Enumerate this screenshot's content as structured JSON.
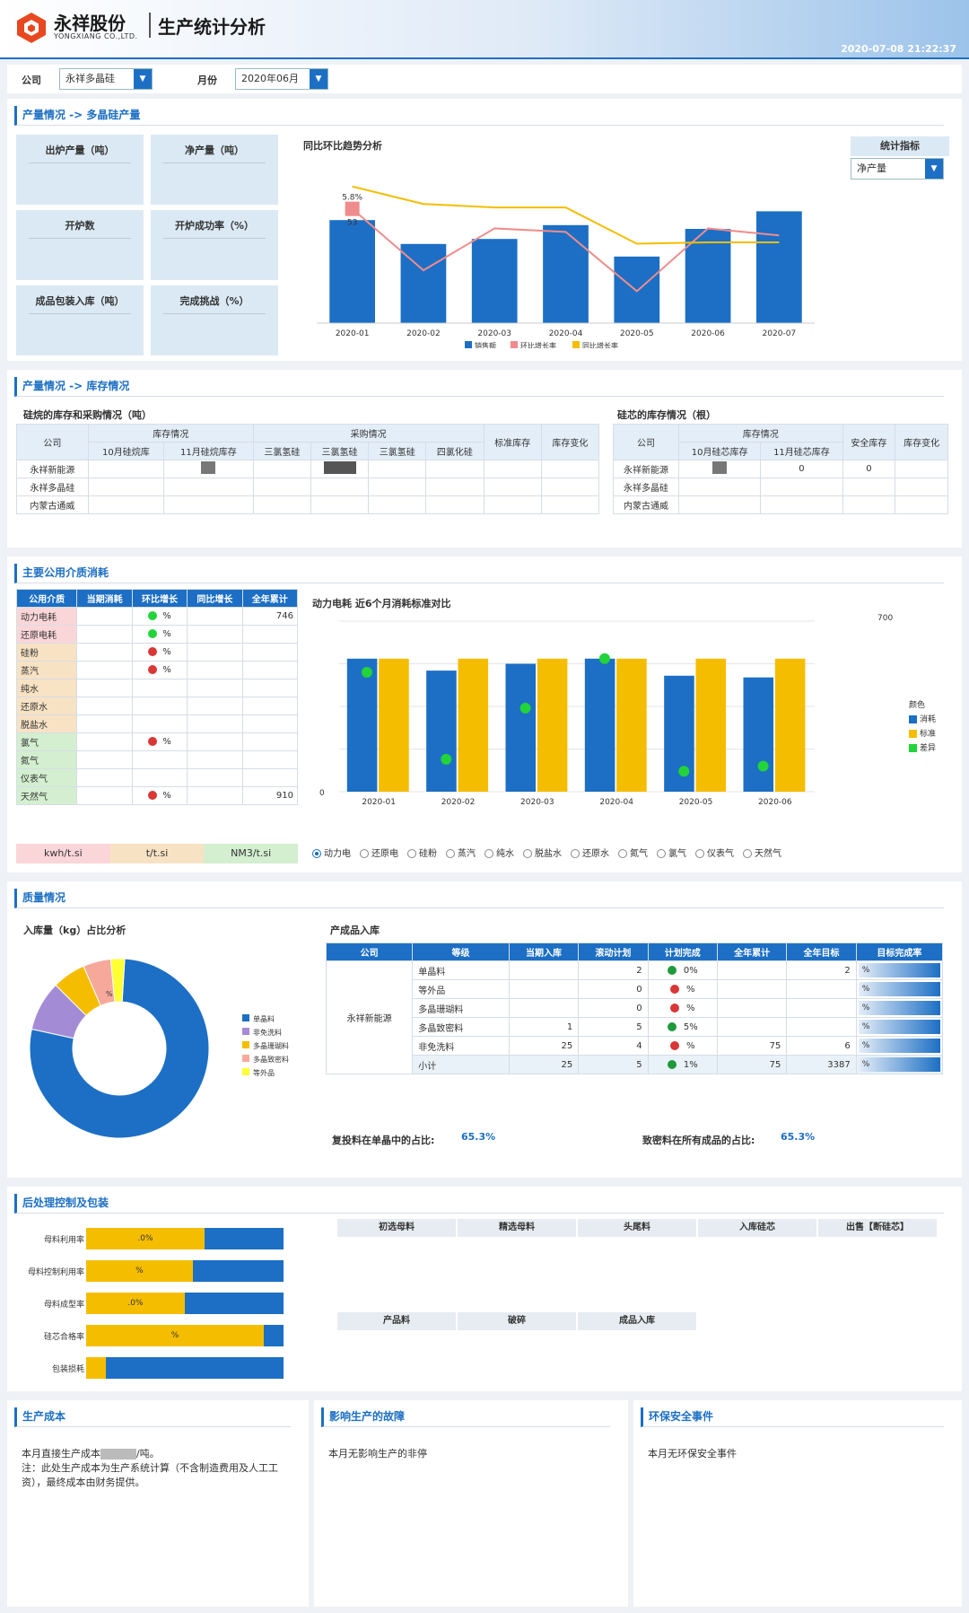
{
  "header": {
    "brand_cn": "永祥股份",
    "brand_en": "YONGXIANG CO.,LTD.",
    "title": "生产统计分析",
    "datetime": "2020-07-08 21:22:37"
  },
  "filter": {
    "company_label": "公司",
    "company_value": "永祥多晶硅",
    "month_label": "月份",
    "month_value": "2020年06月"
  },
  "output": {
    "section_title": "产量情况 -> 多晶硅产量",
    "kpis": [
      "出炉产量（吨）",
      "净产量（吨）",
      "开炉数",
      "开炉成功率（%）",
      "成品包装入库（吨）",
      "完成挑战（%）"
    ],
    "trend_title": "同比环比趋势分析",
    "indicator_label": "统计指标",
    "indicator_value": "净产量",
    "chart_data": {
      "type": "bar",
      "categories": [
        "2020-01",
        "2020-02",
        "2020-03",
        "2020-04",
        "2020-05",
        "2020-06",
        "2020-07"
      ],
      "series": [
        {
          "name": "销售额",
          "type": "bar",
          "values": [
            82,
            63,
            67,
            78,
            53,
            75,
            89
          ]
        },
        {
          "name": "环比增长率",
          "type": "line",
          "values": [
            5.8,
            -3,
            3,
            2.5,
            -6,
            3,
            2
          ]
        },
        {
          "name": "同比增长率",
          "type": "line",
          "values": [
            9,
            6.5,
            6,
            6,
            0.8,
            1,
            1
          ]
        }
      ],
      "labels": [
        "5.8%",
        "53"
      ],
      "legend": [
        "销售额",
        "环比增长率",
        "同比增长率"
      ]
    }
  },
  "inventory": {
    "section_title": "产量情况 -> 库存情况",
    "left_title": "硅烷的库存和采购情况（吨）",
    "left_headers": {
      "company": "公司",
      "stock": "库存情况",
      "purchase": "采购情况",
      "oct": "10月硅烷库",
      "nov": "11月硅烷库存",
      "p1": "三氯氢硅",
      "p2": "三氯氢硅",
      "p3": "三氯氢硅",
      "p4": "四氯化硅",
      "std": "标准库存",
      "chg": "库存变化"
    },
    "right_title": "硅芯的库存情况（根）",
    "right_headers": {
      "company": "公司",
      "stock": "库存情况",
      "oct": "10月硅芯库存",
      "nov": "11月硅芯库存",
      "safe": "安全库存",
      "chg": "库存变化"
    },
    "rows": [
      "永祥新能源",
      "永祥多晶硅",
      "内蒙古通威"
    ],
    "right_row1_safe": "0",
    "right_row1_nov": "0"
  },
  "utilities": {
    "section_title": "主要公用介质消耗",
    "headers": [
      "公用介质",
      "当期消耗",
      "环比增长",
      "同比增长",
      "全年累计"
    ],
    "rows": [
      {
        "name": "动力电耗",
        "mom": "%",
        "dot": "green",
        "total": "746"
      },
      {
        "name": "还原电耗",
        "mom": "%",
        "dot": "green",
        "total": ""
      },
      {
        "name": "硅粉",
        "mom": "%",
        "dot": "red",
        "total": ""
      },
      {
        "name": "蒸汽",
        "mom": "%",
        "dot": "red",
        "total": ""
      },
      {
        "name": "纯水",
        "mom": "",
        "dot": "",
        "total": ""
      },
      {
        "name": "还原水",
        "mom": "",
        "dot": "",
        "total": ""
      },
      {
        "name": "脱盐水",
        "mom": "",
        "dot": "",
        "total": ""
      },
      {
        "name": "氯气",
        "mom": "%",
        "dot": "red",
        "total": ""
      },
      {
        "name": "氮气",
        "mom": "",
        "dot": "",
        "total": ""
      },
      {
        "name": "仪表气",
        "mom": "",
        "dot": "",
        "total": ""
      },
      {
        "name": "天然气",
        "mom": "%",
        "dot": "red",
        "total": "910"
      }
    ],
    "units": [
      "kwh/t.si",
      "t/t.si",
      "NM3/t.si"
    ],
    "chart_title": "动力电耗  近6个月消耗标准对比",
    "axis_right_top": "700",
    "radios": [
      "动力电",
      "还原电",
      "硅粉",
      "蒸汽",
      "纯水",
      "脱盐水",
      "还原水",
      "氮气",
      "氯气",
      "仪表气",
      "天然气"
    ],
    "legend_title": "颜色",
    "legend": [
      "消耗",
      "标准",
      "差异"
    ],
    "chart_data": {
      "type": "bar",
      "categories": [
        "2020-01",
        "2020-02",
        "2020-03",
        "2020-04",
        "2020-05",
        "2020-06"
      ],
      "series": [
        {
          "name": "消耗",
          "values": [
            78,
            71,
            75,
            78,
            68,
            67
          ]
        },
        {
          "name": "标准",
          "values": [
            78,
            78,
            78,
            78,
            78,
            78
          ]
        },
        {
          "name": "差异",
          "values": [
            70,
            19,
            49,
            78,
            12,
            15
          ]
        }
      ],
      "ylim": [
        0,
        100
      ]
    }
  },
  "quality": {
    "section_title": "质量情况",
    "pie_title": "入库量（kg）占比分析",
    "chart_data": {
      "type": "pie",
      "categories": [
        "单晶料",
        "非免洗料",
        "多晶珊瑚料",
        "多晶致密料",
        "等外品"
      ],
      "values": [
        77.5,
        9,
        6,
        5,
        2.5
      ],
      "center_label": "",
      "label": "%"
    },
    "table_title": "产成品入库",
    "headers": [
      "公司",
      "等级",
      "当期入库",
      "滚动计划",
      "计划完成",
      "全年累计",
      "全年目标",
      "目标完成率"
    ],
    "company": "永祥新能源",
    "grades": [
      "单晶料",
      "等外品",
      "多晶珊瑚料",
      "多晶致密料",
      "非免洗料",
      "小计"
    ],
    "cells": [
      {
        "in": "",
        "plan": "2",
        "done": "0%",
        "dot": "green",
        "ytd": "",
        "target": "2",
        "rate": "%"
      },
      {
        "in": "",
        "plan": "0",
        "done": "%",
        "dot": "red",
        "ytd": "",
        "target": "",
        "rate": "%"
      },
      {
        "in": "",
        "plan": "0",
        "done": "%",
        "dot": "red",
        "ytd": "",
        "target": "",
        "rate": "%"
      },
      {
        "in": "1",
        "plan": "5",
        "done": "5%",
        "dot": "green",
        "ytd": "",
        "target": "",
        "rate": "%"
      },
      {
        "in": "25",
        "plan": "4",
        "done": "%",
        "dot": "red",
        "ytd": "75",
        "target": "6",
        "rate": "%"
      },
      {
        "in": "25",
        "plan": "5",
        "done": "1%",
        "dot": "green",
        "ytd": "75",
        "target": "3387",
        "rate": "%"
      }
    ],
    "ratio1_label": "复投料在单晶中的占比:",
    "ratio1_value": "65.3%",
    "ratio2_label": "致密料在所有成品的占比:",
    "ratio2_value": "65.3%"
  },
  "postproc": {
    "section_title": "后处理控制及包装",
    "bars": [
      {
        "label": "母料利用率",
        "text": ".0%",
        "fill": 0.6
      },
      {
        "label": "母料控制利用率",
        "text": "%",
        "fill": 0.54
      },
      {
        "label": "母料成型率",
        "text": ".0%",
        "fill": 0.5
      },
      {
        "label": "硅芯合格率",
        "text": "%",
        "fill": 0.9
      },
      {
        "label": "包装损耗",
        "text": "",
        "fill": 0.1
      }
    ],
    "row1": [
      "初选母料",
      "精选母料",
      "头尾料",
      "入库硅芯",
      "出售【断硅芯】"
    ],
    "row2": [
      "产品料",
      "破碎",
      "成品入库"
    ]
  },
  "footer": {
    "cost_title": "生产成本",
    "cost_text1": "本月直接生产成本",
    "cost_text2": "/吨。",
    "cost_note": "注：此处生产成本为生产系统计算（不含制造费用及人工工资），最终成本由财务提供。",
    "fault_title": "影响生产的故障",
    "fault_text": "本月无影响生产的非停",
    "env_title": "环保安全事件",
    "env_text": "本月无环保安全事件"
  },
  "colors": {
    "primary": "#1c6fc4",
    "yellow": "#f5bd00",
    "pink": "#ef8c8c",
    "green": "#22d33a",
    "red": "#d93636",
    "purple": "#a48bd6",
    "salmon": "#f6a99a"
  }
}
